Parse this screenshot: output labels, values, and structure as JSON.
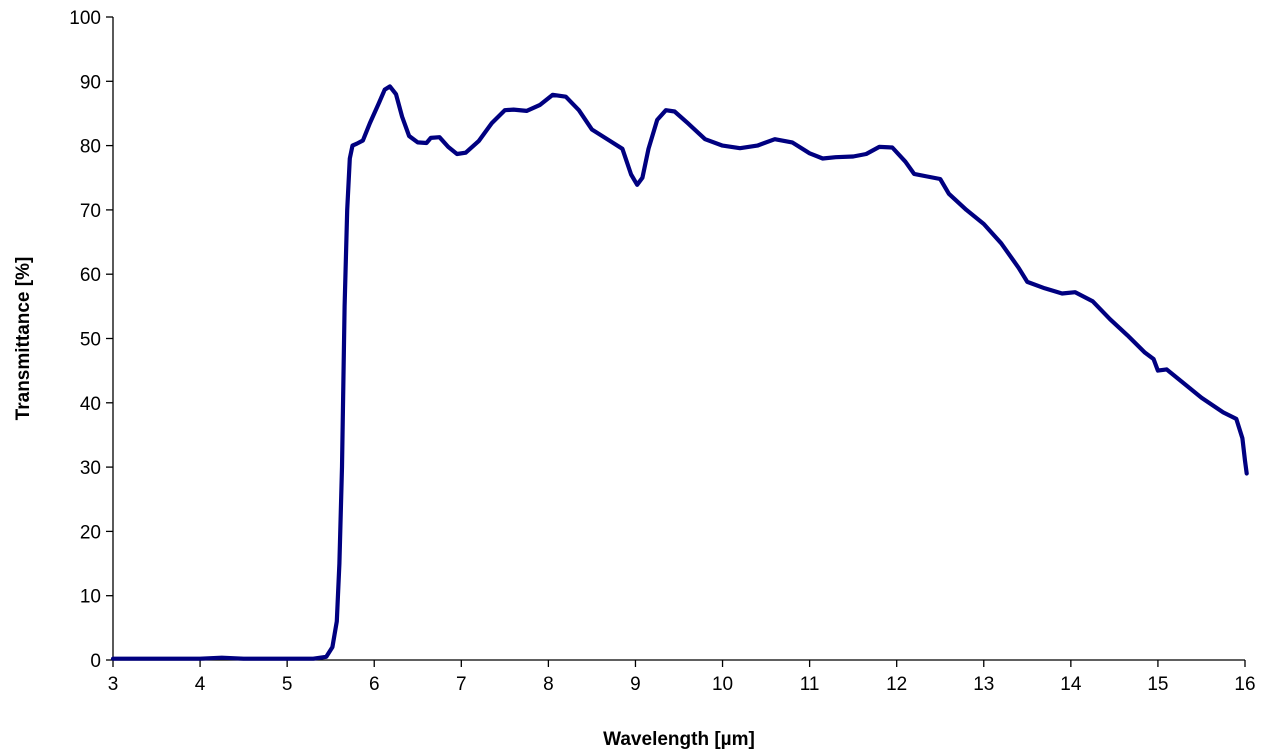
{
  "chart_data": {
    "type": "line",
    "title": "",
    "xlabel": "Wavelength [µm]",
    "ylabel": "Transmittance [%]",
    "xlim": [
      3,
      16
    ],
    "ylim": [
      0,
      100
    ],
    "xticks": [
      3,
      4,
      5,
      6,
      7,
      8,
      9,
      10,
      11,
      12,
      13,
      14,
      15,
      16
    ],
    "yticks": [
      0,
      10,
      20,
      30,
      40,
      50,
      60,
      70,
      80,
      90,
      100
    ],
    "xtick_labels": [
      "3",
      "4",
      "5",
      "6",
      "7",
      "8",
      "9",
      "10",
      "11",
      "12",
      "13",
      "14",
      "15",
      "16"
    ],
    "ytick_labels": [
      "0",
      "10",
      "20",
      "30",
      "40",
      "50",
      "60",
      "70",
      "80",
      "90",
      "100"
    ],
    "grid": false,
    "legend": "none",
    "line_color": "#000080",
    "series": [
      {
        "points": [
          [
            3.0,
            0.2
          ],
          [
            4.0,
            0.2
          ],
          [
            4.25,
            0.35
          ],
          [
            4.5,
            0.2
          ],
          [
            5.0,
            0.2
          ],
          [
            5.3,
            0.2
          ],
          [
            5.45,
            0.5
          ],
          [
            5.52,
            2.0
          ],
          [
            5.57,
            6.0
          ],
          [
            5.6,
            15.0
          ],
          [
            5.63,
            30.0
          ],
          [
            5.66,
            55.0
          ],
          [
            5.69,
            70.0
          ],
          [
            5.72,
            78.0
          ],
          [
            5.75,
            80.0
          ],
          [
            5.8,
            80.3
          ],
          [
            5.87,
            80.8
          ],
          [
            5.95,
            83.5
          ],
          [
            6.05,
            86.5
          ],
          [
            6.12,
            88.7
          ],
          [
            6.18,
            89.2
          ],
          [
            6.25,
            88.0
          ],
          [
            6.32,
            84.5
          ],
          [
            6.4,
            81.5
          ],
          [
            6.5,
            80.5
          ],
          [
            6.6,
            80.4
          ],
          [
            6.65,
            81.2
          ],
          [
            6.75,
            81.3
          ],
          [
            6.85,
            79.8
          ],
          [
            6.95,
            78.7
          ],
          [
            7.05,
            78.9
          ],
          [
            7.2,
            80.7
          ],
          [
            7.35,
            83.5
          ],
          [
            7.5,
            85.5
          ],
          [
            7.6,
            85.6
          ],
          [
            7.75,
            85.4
          ],
          [
            7.9,
            86.3
          ],
          [
            8.05,
            87.9
          ],
          [
            8.2,
            87.6
          ],
          [
            8.35,
            85.5
          ],
          [
            8.5,
            82.5
          ],
          [
            8.7,
            80.8
          ],
          [
            8.85,
            79.5
          ],
          [
            8.95,
            75.5
          ],
          [
            9.02,
            73.9
          ],
          [
            9.08,
            75.0
          ],
          [
            9.15,
            79.5
          ],
          [
            9.25,
            84.0
          ],
          [
            9.35,
            85.5
          ],
          [
            9.45,
            85.3
          ],
          [
            9.6,
            83.5
          ],
          [
            9.8,
            81.0
          ],
          [
            10.0,
            80.0
          ],
          [
            10.2,
            79.6
          ],
          [
            10.4,
            80.0
          ],
          [
            10.6,
            81.0
          ],
          [
            10.8,
            80.5
          ],
          [
            11.0,
            78.8
          ],
          [
            11.15,
            78.0
          ],
          [
            11.3,
            78.2
          ],
          [
            11.5,
            78.3
          ],
          [
            11.65,
            78.7
          ],
          [
            11.8,
            79.8
          ],
          [
            11.95,
            79.7
          ],
          [
            12.1,
            77.5
          ],
          [
            12.2,
            75.6
          ],
          [
            12.35,
            75.2
          ],
          [
            12.5,
            74.8
          ],
          [
            12.6,
            72.5
          ],
          [
            12.8,
            70.0
          ],
          [
            13.0,
            67.8
          ],
          [
            13.2,
            64.8
          ],
          [
            13.4,
            61.0
          ],
          [
            13.5,
            58.8
          ],
          [
            13.7,
            57.8
          ],
          [
            13.9,
            57.0
          ],
          [
            14.05,
            57.2
          ],
          [
            14.25,
            55.8
          ],
          [
            14.45,
            53.0
          ],
          [
            14.65,
            50.5
          ],
          [
            14.85,
            47.8
          ],
          [
            14.95,
            46.8
          ],
          [
            15.0,
            45.0
          ],
          [
            15.1,
            45.2
          ],
          [
            15.3,
            43.0
          ],
          [
            15.5,
            40.8
          ],
          [
            15.75,
            38.5
          ],
          [
            15.9,
            37.5
          ],
          [
            15.97,
            34.5
          ],
          [
            16.0,
            31.0
          ],
          [
            16.02,
            29.0
          ]
        ]
      }
    ]
  }
}
